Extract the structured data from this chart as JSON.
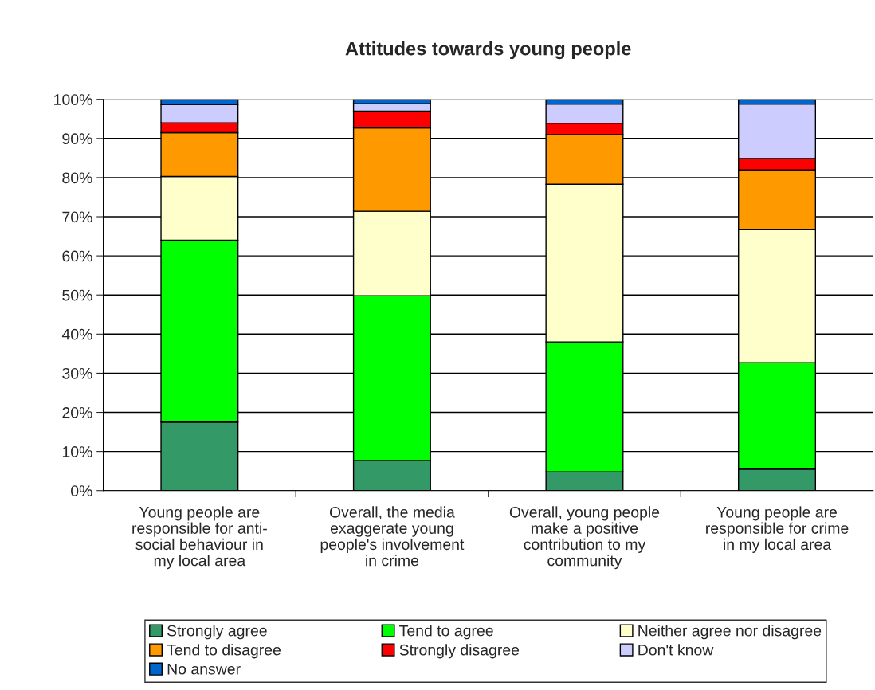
{
  "chart_data": {
    "type": "bar",
    "stacked": true,
    "title": "Attitudes towards young people",
    "categories": [
      "Young people are\nresponsible for anti-\nsocial behaviour in\nmy local area",
      "Overall, the media\nexaggerate young\npeople's involvement\nin crime",
      "Overall, young people\nmake a positive\ncontribution to my\ncommunity",
      "Young people are\nresponsible for crime\nin my local area"
    ],
    "series": [
      {
        "name": "Strongly agree",
        "color": "#339966",
        "values": [
          17.5,
          7.7,
          4.8,
          5.5
        ]
      },
      {
        "name": "Tend to agree",
        "color": "#00ff00",
        "values": [
          46.5,
          42.1,
          33.2,
          27.2
        ]
      },
      {
        "name": "Neither agree nor disagree",
        "color": "#ffffcc",
        "values": [
          16.3,
          21.6,
          40.3,
          34.0
        ]
      },
      {
        "name": "Tend to disagree",
        "color": "#ff9900",
        "values": [
          11.2,
          21.3,
          12.7,
          15.3
        ]
      },
      {
        "name": "Strongly disagree",
        "color": "#ff0000",
        "values": [
          2.5,
          4.3,
          2.9,
          2.9
        ]
      },
      {
        "name": "Don't know",
        "color": "#ccccff",
        "values": [
          4.7,
          1.9,
          4.9,
          13.9
        ]
      },
      {
        "name": "No answer",
        "color": "#0066cc",
        "values": [
          1.3,
          1.1,
          1.2,
          1.2
        ]
      }
    ],
    "ylim": [
      0,
      100
    ],
    "yticks": [
      {
        "value": 0,
        "label": "0%"
      },
      {
        "value": 10,
        "label": "10%"
      },
      {
        "value": 20,
        "label": "20%"
      },
      {
        "value": 30,
        "label": "30%"
      },
      {
        "value": 40,
        "label": "40%"
      },
      {
        "value": 50,
        "label": "50%"
      },
      {
        "value": 60,
        "label": "60%"
      },
      {
        "value": 70,
        "label": "70%"
      },
      {
        "value": 80,
        "label": "80%"
      },
      {
        "value": 90,
        "label": "90%"
      },
      {
        "value": 100,
        "label": "100%"
      }
    ],
    "grid": "y",
    "legend": "bottom"
  }
}
